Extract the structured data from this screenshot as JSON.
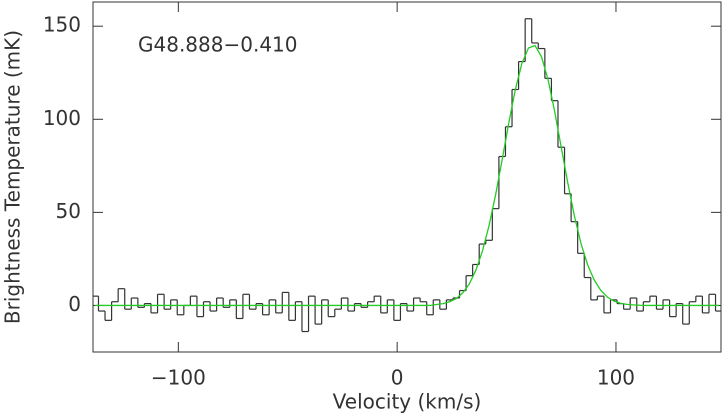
{
  "chart_data": {
    "type": "step",
    "annotation": "G48.888−0.410",
    "x_label": "Velocity (km/s)",
    "y_label": "Brightness Temperature (mK)",
    "x": [
      -138,
      -135,
      -132,
      -129,
      -126,
      -123,
      -120,
      -117,
      -114,
      -111,
      -108,
      -105,
      -102,
      -99,
      -96,
      -93,
      -90,
      -87,
      -84,
      -81,
      -78,
      -75,
      -72,
      -69,
      -66,
      -63,
      -60,
      -57,
      -54,
      -51,
      -48,
      -45,
      -42,
      -39,
      -36,
      -33,
      -30,
      -27,
      -24,
      -21,
      -18,
      -15,
      -12,
      -9,
      -6,
      -3,
      0,
      3,
      6,
      9,
      12,
      15,
      18,
      21,
      24,
      27,
      30,
      33,
      36,
      39,
      42,
      45,
      48,
      51,
      54,
      57,
      60,
      63,
      66,
      69,
      72,
      75,
      78,
      81,
      84,
      87,
      90,
      93,
      96,
      99,
      102,
      105,
      108,
      111,
      114,
      117,
      120,
      123,
      126,
      129,
      132,
      135,
      138,
      141,
      144,
      147
    ],
    "series": [
      {
        "name": "spectrum",
        "color": "#333333",
        "values": [
          5,
          -3,
          -8,
          2,
          9,
          -2,
          4,
          -1,
          1,
          -4,
          6,
          -2,
          3,
          -5,
          0,
          5,
          -6,
          2,
          -3,
          4,
          -1,
          3,
          -7,
          6,
          -2,
          1,
          -5,
          3,
          -4,
          7,
          -8,
          2,
          -14,
          5,
          -10,
          3,
          -6,
          -2,
          4,
          -3,
          1,
          -1,
          2,
          5,
          -4,
          3,
          -8,
          1,
          -3,
          4,
          2,
          -5,
          3,
          -2,
          3,
          4,
          8,
          16,
          22,
          33,
          35,
          52,
          80,
          96,
          116,
          131,
          154,
          141,
          138,
          122,
          110,
          85,
          60,
          45,
          28,
          15,
          3,
          5,
          -4,
          3,
          1,
          -2,
          4,
          -3,
          2,
          5,
          -2,
          3,
          -6,
          1,
          -10,
          2,
          5,
          -4,
          6,
          -3
        ]
      },
      {
        "name": "fit",
        "color": "#22cc22",
        "values": [
          0,
          0,
          0,
          0,
          0,
          0,
          0,
          0,
          0,
          0,
          0,
          0,
          0,
          0,
          0,
          0,
          0,
          0,
          0,
          0,
          0,
          0,
          0,
          0,
          0,
          0,
          0,
          0,
          0,
          0,
          0,
          0,
          0,
          0,
          0,
          0,
          0,
          0,
          0,
          0,
          0,
          0,
          0,
          0,
          0,
          0,
          0,
          0,
          0,
          0,
          0,
          0,
          0.5,
          1.0,
          2.0,
          3.7,
          6.8,
          11.6,
          19.0,
          29.3,
          42.9,
          59.5,
          78.4,
          97.9,
          115.9,
          130.0,
          138.3,
          139.6,
          133.5,
          121.1,
          104.1,
          84.9,
          65.7,
          48.1,
          33.4,
          22.0,
          13.8,
          8.2,
          4.6,
          2.4,
          1.2,
          0.6,
          0.3,
          0.1,
          0,
          0,
          0,
          0,
          0,
          0,
          0,
          0,
          0,
          0,
          0,
          0
        ]
      }
    ],
    "xlim": [
      -139,
      148
    ],
    "ylim": [
      -25,
      163
    ],
    "xticks": [
      {
        "value": -100,
        "label": "−100"
      },
      0,
      100
    ],
    "yticks": [
      0,
      50,
      100,
      150
    ]
  }
}
